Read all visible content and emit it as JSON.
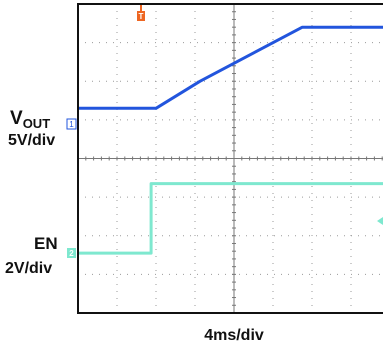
{
  "colors": {
    "ch1": "#2255dd",
    "ch2": "#7ee8cf",
    "trigger": "#ee6622",
    "grid": "#9a9a9a",
    "frame": "#111111",
    "background": "#ffffff"
  },
  "chart_data": {
    "type": "line",
    "xlabel": "4ms/div",
    "grid": true,
    "x_divisions": 8,
    "y_divisions": 8,
    "x_unit_per_div_ms": 4,
    "trigger_marker": {
      "label": "T",
      "x_ms": 8
    },
    "series": [
      {
        "name": "VOUT",
        "label_main": "V",
        "label_sub": "OUT",
        "scale": "5V/div",
        "channel": "1",
        "ground_div": 5.3,
        "x_ms": [
          0,
          8,
          12.5,
          23,
          32
        ],
        "y_div": [
          5.3,
          5.3,
          6.0,
          7.4,
          7.4
        ]
      },
      {
        "name": "EN",
        "scale": "2V/div",
        "channel": "2",
        "ground_div": 1.55,
        "x_ms": [
          0,
          7.5,
          7.5,
          32
        ],
        "y_div": [
          1.55,
          1.55,
          3.35,
          3.35
        ]
      }
    ]
  }
}
